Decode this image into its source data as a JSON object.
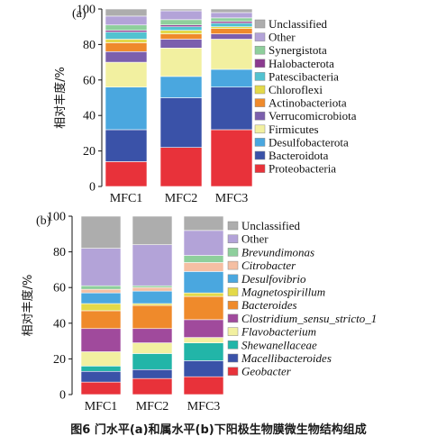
{
  "caption": "图6   门水平(a)和属水平(b)下阳极生物膜微生物结构组成",
  "colors": {
    "Unclassified": "#adadad",
    "Other": "#b3a3d8",
    "Synergistota": "#8ecf9c",
    "Halobacterota": "#8b3a8f",
    "Patescibacteria": "#52c2d0",
    "Chloroflexi": "#e3d949",
    "Actinobacteriota": "#ef8a2b",
    "Verrucomicrobiota": "#7b5fad",
    "Firmicutes": "#f2f0a0",
    "Desulfobacterota": "#4aa7df",
    "Bacteroidota": "#3a52a8",
    "Proteobacteria": "#e8323a",
    "Brevundimonas": "#8ecf9c",
    "Citrobacter": "#f5bfa3",
    "Desulfovibrio": "#4aa7df",
    "Magnetospirillum": "#e3d949",
    "Bacteroides": "#ef8a2b",
    "Clostridium_sensu_stricto_1": "#a04a9c",
    "Flavobacterium": "#f2f0a0",
    "Shewanellaceae": "#22b5a8",
    "Macellibacteroides": "#3a52a8",
    "Geobacter": "#e8323a"
  },
  "chart_data": [
    {
      "type": "bar",
      "stacked": true,
      "panel_label": "(a)",
      "ylabel": "相对丰度/%",
      "ylim": [
        0,
        100
      ],
      "yticks": [
        0,
        20,
        40,
        60,
        80,
        100
      ],
      "categories": [
        "MFC1",
        "MFC2",
        "MFC3"
      ],
      "series": [
        {
          "name": "Proteobacteria",
          "values": [
            14,
            22,
            32
          ]
        },
        {
          "name": "Bacteroidota",
          "values": [
            18,
            28,
            24
          ]
        },
        {
          "name": "Desulfobacterota",
          "values": [
            24,
            12,
            10
          ]
        },
        {
          "name": "Firmicutes",
          "values": [
            14,
            16,
            17
          ]
        },
        {
          "name": "Verrucomicrobiota",
          "values": [
            6,
            5,
            3
          ]
        },
        {
          "name": "Actinobacteriota",
          "values": [
            5,
            3,
            3
          ]
        },
        {
          "name": "Chloroflexi",
          "values": [
            2,
            2,
            1
          ]
        },
        {
          "name": "Patescibacteria",
          "values": [
            4,
            2,
            2
          ]
        },
        {
          "name": "Halobacterota",
          "values": [
            1,
            1,
            1
          ]
        },
        {
          "name": "Synergistota",
          "values": [
            3,
            3,
            2
          ]
        },
        {
          "name": "Other",
          "values": [
            5,
            5,
            3
          ]
        },
        {
          "name": "Unclassified",
          "values": [
            4,
            1,
            2
          ]
        }
      ],
      "legend_order": [
        "Unclassified",
        "Other",
        "Synergistota",
        "Halobacterota",
        "Patescibacteria",
        "Chloroflexi",
        "Actinobacteriota",
        "Verrucomicrobiota",
        "Firmicutes",
        "Desulfobacterota",
        "Bacteroidota",
        "Proteobacteria"
      ]
    },
    {
      "type": "bar",
      "stacked": true,
      "panel_label": "(b)",
      "ylabel": "相对丰度/%",
      "ylim": [
        0,
        100
      ],
      "yticks": [
        0,
        20,
        40,
        60,
        80,
        100
      ],
      "categories": [
        "MFC1",
        "MFC2",
        "MFC3"
      ],
      "series": [
        {
          "name": "Geobacter",
          "values": [
            7,
            9,
            10
          ]
        },
        {
          "name": "Macellibacteroides",
          "values": [
            6,
            5,
            9
          ]
        },
        {
          "name": "Shewanellaceae",
          "values": [
            3,
            9,
            10
          ]
        },
        {
          "name": "Flavobacterium",
          "values": [
            8,
            6,
            3
          ]
        },
        {
          "name": "Clostridium_sensu_stricto_1",
          "values": [
            13,
            8,
            10
          ]
        },
        {
          "name": "Bacteroides",
          "values": [
            10,
            13,
            13
          ]
        },
        {
          "name": "Magnetospirillum",
          "values": [
            4,
            1,
            2
          ]
        },
        {
          "name": "Desulfovibrio",
          "values": [
            6,
            7,
            12
          ]
        },
        {
          "name": "Citrobacter",
          "values": [
            2,
            2,
            5
          ]
        },
        {
          "name": "Brevundimonas",
          "values": [
            2,
            1,
            4
          ]
        },
        {
          "name": "Other",
          "values": [
            21,
            23,
            14
          ]
        },
        {
          "name": "Unclassified",
          "values": [
            18,
            16,
            8
          ]
        }
      ],
      "legend_order": [
        "Unclassified",
        "Other",
        "Brevundimonas",
        "Citrobacter",
        "Desulfovibrio",
        "Magnetospirillum",
        "Bacteroides",
        "Clostridium_sensu_stricto_1",
        "Flavobacterium",
        "Shewanellaceae",
        "Macellibacteroides",
        "Geobacter"
      ],
      "italic_legend": [
        "Brevundimonas",
        "Citrobacter",
        "Desulfovibrio",
        "Magnetospirillum",
        "Bacteroides",
        "Clostridium_sensu_stricto_1",
        "Flavobacterium",
        "Shewanellaceae",
        "Macellibacteroides",
        "Geobacter"
      ]
    }
  ]
}
